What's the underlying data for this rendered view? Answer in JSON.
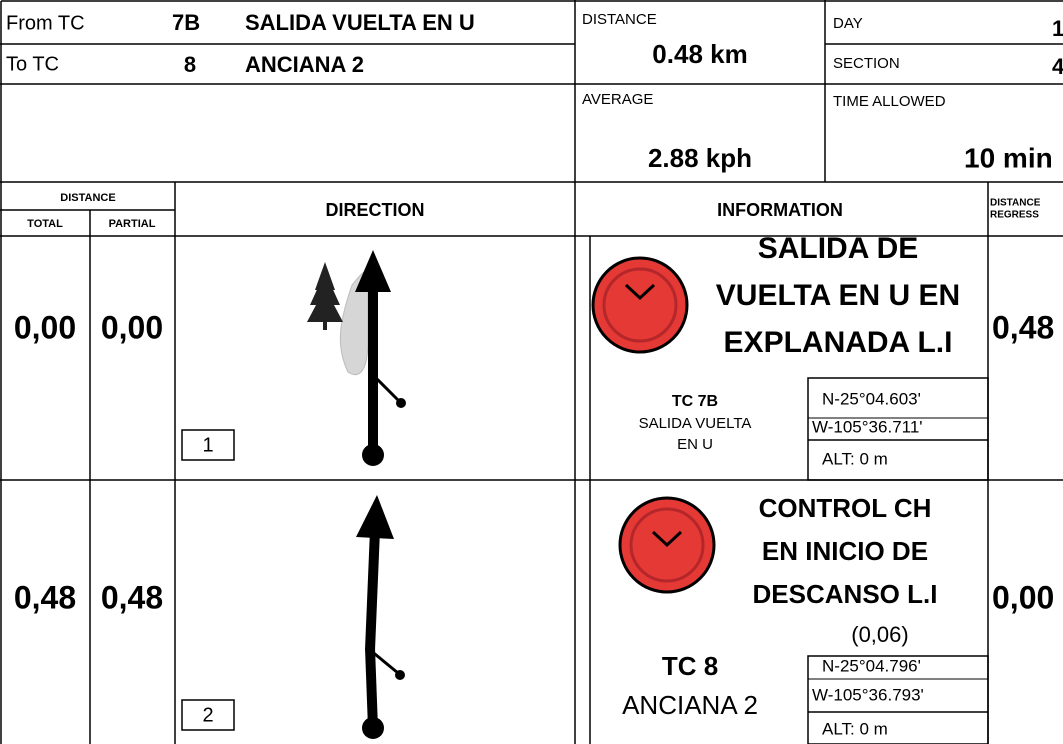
{
  "header": {
    "from_label": "From TC",
    "from_tc": "7B",
    "from_name": "SALIDA VUELTA EN U",
    "to_label": "To TC",
    "to_tc": "8",
    "to_name": "ANCIANA 2",
    "distance_label": "DISTANCE",
    "distance": "0.48 km",
    "average_label": "AVERAGE",
    "average": "2.88 kph",
    "day_label": "DAY",
    "day": "1",
    "section_label": "SECTION",
    "section": "4",
    "time_label": "TIME ALLOWED",
    "time": "10 min"
  },
  "columns": {
    "distance": "DISTANCE",
    "total": "TOTAL",
    "partial": "PARTIAL",
    "direction": "DIRECTION",
    "information": "INFORMATION",
    "regress": [
      "DISTANCE",
      "REGRESS"
    ]
  },
  "rows": [
    {
      "total": "0,00",
      "partial": "0,00",
      "number": "1",
      "info_lines": [
        "SALIDA DE",
        "VUELTA EN U EN",
        "EXPLANADA L.I"
      ],
      "tc": "TC 7B",
      "tc_name_lines": [
        "SALIDA VUELTA",
        "EN U"
      ],
      "lat": "N-25°04.603'",
      "lon": "W-105°36.711'",
      "alt": "ALT: 0 m",
      "regress": "0,48"
    },
    {
      "total": "0,48",
      "partial": "0,48",
      "number": "2",
      "info_lines": [
        "CONTROL CH",
        "EN INICIO DE",
        "DESCANSO L.I"
      ],
      "note": "(0,06)",
      "tc": "TC 8",
      "tc_name_lines": [
        "ANCIANA 2"
      ],
      "lat": "N-25°04.796'",
      "lon": "W-105°36.793'",
      "alt": "ALT: 0 m",
      "regress": "0,00"
    }
  ]
}
